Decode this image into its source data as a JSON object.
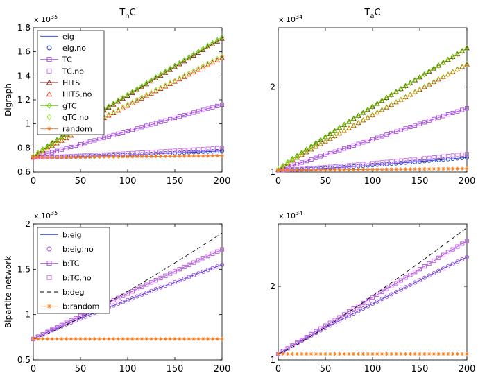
{
  "figure": {
    "column_titles": [
      {
        "main": "T",
        "sub": "h",
        "tail": "C"
      },
      {
        "main": "T",
        "sub": "a",
        "tail": "C"
      }
    ],
    "row_labels": [
      "Digraph",
      "Bipartite network"
    ]
  },
  "colors": {
    "blue": "#1f3bd6",
    "purple": "#a646e6",
    "magenta_sq": "#c86be6",
    "darkred": "#8b1a1a",
    "red": "#e0251b",
    "green": "#5fd000",
    "lightgreen": "#9ae62a",
    "orange": "#f07a1e",
    "black": "#000000"
  },
  "chart_data": [
    {
      "name": "digraph-thc",
      "type": "line",
      "title": "T_hC",
      "ylabel": "Digraph",
      "exponent": "x 10",
      "exponent_power": "35",
      "x": [
        0,
        200
      ],
      "xlim": [
        0,
        200
      ],
      "ylim": [
        0.6,
        1.8
      ],
      "xticks": [
        0,
        50,
        100,
        150,
        200
      ],
      "yticks": [
        0.6,
        0.8,
        1,
        1.2,
        1.4,
        1.6,
        1.8
      ],
      "ytick_labels": [
        "0.6",
        "0.8",
        "1",
        "1.2",
        "1.4",
        "1.6",
        "1.8"
      ],
      "legend": "top-left",
      "series": [
        {
          "name": "eig",
          "color": "blue",
          "style": "line",
          "start": 0.72,
          "end": 0.775,
          "curve": 1.3
        },
        {
          "name": "eig.no",
          "color": "blue",
          "style": "circle",
          "start": 0.72,
          "end": 0.775,
          "curve": 1.3
        },
        {
          "name": "TC",
          "color": "purple",
          "style": "line-square",
          "start": 0.72,
          "end": 1.16,
          "curve": 1.0
        },
        {
          "name": "TC.no",
          "color": "magenta_sq",
          "style": "square",
          "start": 0.72,
          "end": 0.8,
          "curve": 1.2
        },
        {
          "name": "HITS",
          "color": "darkred",
          "style": "line-triangle",
          "start": 0.725,
          "end": 1.71,
          "curve": 0.95
        },
        {
          "name": "HITS.no",
          "color": "red",
          "style": "triangle",
          "start": 0.725,
          "end": 1.55,
          "curve": 0.95
        },
        {
          "name": "gTC",
          "color": "green",
          "style": "line-diamond",
          "start": 0.73,
          "end": 1.72,
          "curve": 0.95
        },
        {
          "name": "gTC.no",
          "color": "lightgreen",
          "style": "diamond",
          "start": 0.73,
          "end": 1.56,
          "curve": 0.95
        },
        {
          "name": "random",
          "color": "orange",
          "style": "line-star",
          "start": 0.72,
          "end": 0.735,
          "curve": 1.0
        }
      ]
    },
    {
      "name": "digraph-tac",
      "type": "line",
      "title": "T_aC",
      "ylabel": "",
      "exponent": "x 10",
      "exponent_power": "34",
      "x": [
        0,
        200
      ],
      "xlim": [
        0,
        200
      ],
      "ylim": [
        1.0,
        2.7
      ],
      "xticks": [
        0,
        50,
        100,
        150,
        200
      ],
      "yticks": [
        1,
        2
      ],
      "ytick_labels": [
        "1",
        "2"
      ],
      "legend": "none",
      "series": [
        {
          "name": "eig",
          "color": "blue",
          "style": "line",
          "start": 1.02,
          "end": 1.17,
          "curve": 1.3
        },
        {
          "name": "eig.no",
          "color": "blue",
          "style": "circle",
          "start": 1.02,
          "end": 1.17,
          "curve": 1.3
        },
        {
          "name": "TC",
          "color": "purple",
          "style": "line-square",
          "start": 1.02,
          "end": 1.75,
          "curve": 1.0
        },
        {
          "name": "TC.no",
          "color": "magenta_sq",
          "style": "square",
          "start": 1.02,
          "end": 1.21,
          "curve": 1.2
        },
        {
          "name": "HITS",
          "color": "darkred",
          "style": "line-triangle",
          "start": 1.03,
          "end": 2.46,
          "curve": 0.95
        },
        {
          "name": "HITS.no",
          "color": "red",
          "style": "triangle",
          "start": 1.03,
          "end": 2.27,
          "curve": 0.95
        },
        {
          "name": "gTC",
          "color": "green",
          "style": "line-diamond",
          "start": 1.03,
          "end": 2.46,
          "curve": 0.95
        },
        {
          "name": "gTC.no",
          "color": "lightgreen",
          "style": "diamond",
          "start": 1.03,
          "end": 2.27,
          "curve": 0.95
        },
        {
          "name": "random",
          "color": "orange",
          "style": "line-star",
          "start": 1.02,
          "end": 1.04,
          "curve": 1.0
        }
      ]
    },
    {
      "name": "bipartite-thc",
      "type": "line",
      "title": "",
      "ylabel": "Bipartite network",
      "exponent": "x 10",
      "exponent_power": "35",
      "x": [
        0,
        200
      ],
      "xlim": [
        0,
        200
      ],
      "ylim": [
        0.5,
        2.0
      ],
      "xticks": [
        0,
        50,
        100,
        150,
        200
      ],
      "yticks": [
        0.5,
        1,
        1.5,
        2
      ],
      "ytick_labels": [
        "0.5",
        "1",
        "1.5",
        "2"
      ],
      "legend": "top-left",
      "series": [
        {
          "name": "b:eig",
          "color": "blue",
          "style": "line",
          "start": 0.73,
          "end": 1.55,
          "curve": 0.93
        },
        {
          "name": "b:eig.no",
          "color": "purple",
          "style": "circle",
          "start": 0.73,
          "end": 1.55,
          "curve": 0.93
        },
        {
          "name": "b:TC",
          "color": "purple",
          "style": "line-square",
          "start": 0.73,
          "end": 1.72,
          "curve": 0.98
        },
        {
          "name": "b:TC.no",
          "color": "magenta_sq",
          "style": "square",
          "start": 0.73,
          "end": 1.72,
          "curve": 0.98
        },
        {
          "name": "b:deg",
          "color": "black",
          "style": "dashed",
          "start": 0.73,
          "end": 1.9,
          "curve": 1.15
        },
        {
          "name": "b:random",
          "color": "orange",
          "style": "line-star",
          "start": 0.73,
          "end": 0.73,
          "curve": 1.0
        }
      ]
    },
    {
      "name": "bipartite-tac",
      "type": "line",
      "title": "",
      "ylabel": "",
      "exponent": "x 10",
      "exponent_power": "34",
      "x": [
        0,
        200
      ],
      "xlim": [
        0,
        200
      ],
      "ylim": [
        1.0,
        2.85
      ],
      "xticks": [
        0,
        50,
        100,
        150,
        200
      ],
      "yticks": [
        1,
        2
      ],
      "ytick_labels": [
        "1",
        "2"
      ],
      "legend": "none",
      "series": [
        {
          "name": "b:eig",
          "color": "blue",
          "style": "line",
          "start": 1.08,
          "end": 2.4,
          "curve": 0.95
        },
        {
          "name": "b:eig.no",
          "color": "purple",
          "style": "circle",
          "start": 1.08,
          "end": 2.4,
          "curve": 0.95
        },
        {
          "name": "b:TC",
          "color": "purple",
          "style": "line-square",
          "start": 1.08,
          "end": 2.62,
          "curve": 1.0
        },
        {
          "name": "b:TC.no",
          "color": "magenta_sq",
          "style": "square",
          "start": 1.08,
          "end": 2.62,
          "curve": 1.0
        },
        {
          "name": "b:deg",
          "color": "black",
          "style": "dashed",
          "start": 1.08,
          "end": 2.8,
          "curve": 1.12
        },
        {
          "name": "b:random",
          "color": "orange",
          "style": "line-star",
          "start": 1.08,
          "end": 1.08,
          "curve": 1.0
        }
      ]
    }
  ]
}
